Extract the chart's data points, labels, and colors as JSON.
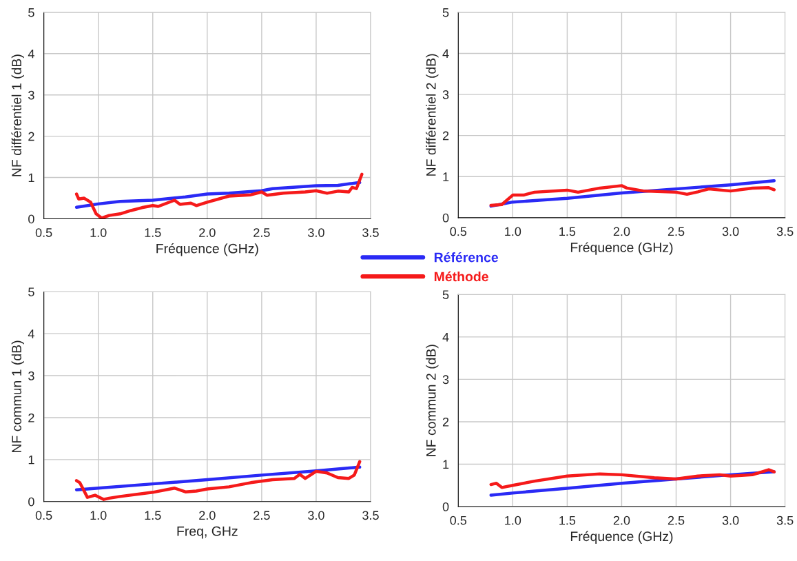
{
  "chart_data": [
    {
      "type": "line",
      "xlabel": "Fréquence (GHz)",
      "ylabel": "NF différentiel 1 (dB)",
      "xlim": [
        0.5,
        3.5
      ],
      "ylim": [
        0,
        5
      ],
      "xticks": [
        0.5,
        {
          "value": 1,
          "label": "1.0"
        },
        1.5,
        {
          "value": 2,
          "label": "2.0"
        },
        2.5,
        {
          "value": 3,
          "label": "3.0"
        },
        3.5
      ],
      "yticks": [
        0,
        1,
        2,
        3,
        4,
        5
      ],
      "grid": true,
      "legend": "bottom right",
      "line_style": "solid",
      "series": [
        {
          "name": "Référence",
          "color": "#2a2af5",
          "x": [
            0.8,
            1.0,
            1.2,
            1.5,
            1.8,
            2.0,
            2.2,
            2.5,
            2.6,
            3.0,
            3.2,
            3.4
          ],
          "values": [
            0.28,
            0.36,
            0.42,
            0.45,
            0.53,
            0.6,
            0.62,
            0.68,
            0.73,
            0.8,
            0.81,
            0.88
          ]
        },
        {
          "name": "Méthode",
          "color": "#f51a1a",
          "x": [
            0.8,
            0.82,
            0.87,
            0.93,
            0.98,
            1.03,
            1.1,
            1.2,
            1.3,
            1.4,
            1.5,
            1.55,
            1.7,
            1.75,
            1.85,
            1.9,
            2.0,
            2.2,
            2.4,
            2.5,
            2.55,
            2.7,
            2.9,
            3.0,
            3.1,
            3.2,
            3.3,
            3.33,
            3.37,
            3.42
          ],
          "values": [
            0.6,
            0.48,
            0.5,
            0.4,
            0.12,
            0.02,
            0.08,
            0.12,
            0.2,
            0.27,
            0.32,
            0.3,
            0.45,
            0.35,
            0.38,
            0.32,
            0.4,
            0.55,
            0.58,
            0.65,
            0.57,
            0.62,
            0.65,
            0.68,
            0.62,
            0.67,
            0.65,
            0.76,
            0.73,
            1.08
          ]
        }
      ]
    },
    {
      "type": "line",
      "xlabel": "Fréquence (GHz)",
      "ylabel": "NF différentiel 2 (dB)",
      "xlim": [
        0.5,
        3.5
      ],
      "ylim": [
        0,
        5
      ],
      "xticks": [
        0.5,
        {
          "value": 1,
          "label": "1.0"
        },
        1.5,
        {
          "value": 2,
          "label": "2.0"
        },
        2.5,
        {
          "value": 3,
          "label": "3.0"
        },
        3.5
      ],
      "yticks": [
        0,
        1,
        2,
        3,
        4,
        5
      ],
      "grid": true,
      "line_style": "solid",
      "series": [
        {
          "color": "#2a2af5",
          "x": [
            0.8,
            1.0,
            1.5,
            2.0,
            2.5,
            3.0,
            3.4
          ],
          "values": [
            0.28,
            0.38,
            0.47,
            0.6,
            0.7,
            0.8,
            0.9
          ]
        },
        {
          "color": "#f51a1a",
          "x": [
            0.8,
            0.9,
            1.0,
            1.1,
            1.2,
            1.5,
            1.6,
            1.8,
            2.0,
            2.05,
            2.2,
            2.5,
            2.6,
            2.7,
            2.8,
            3.0,
            3.2,
            3.35,
            3.4
          ],
          "values": [
            0.3,
            0.32,
            0.55,
            0.55,
            0.62,
            0.67,
            0.62,
            0.72,
            0.78,
            0.72,
            0.65,
            0.62,
            0.57,
            0.63,
            0.7,
            0.65,
            0.72,
            0.73,
            0.68
          ]
        }
      ]
    },
    {
      "type": "line",
      "xlabel": "Freq, GHz",
      "ylabel": "NF commun 1 (dB)",
      "xlim": [
        0.5,
        3.5
      ],
      "ylim": [
        0,
        5
      ],
      "xticks": [
        0.5,
        {
          "value": 1,
          "label": "1.0"
        },
        1.5,
        {
          "value": 2,
          "label": "2.0"
        },
        2.5,
        {
          "value": 3,
          "label": "3.0"
        },
        3.5
      ],
      "yticks": [
        0,
        1,
        2,
        3,
        4,
        5
      ],
      "grid": true,
      "line_style": "solid",
      "series": [
        {
          "color": "#2a2af5",
          "x": [
            0.8,
            1.0,
            1.5,
            2.0,
            2.5,
            3.0,
            3.4
          ],
          "values": [
            0.28,
            0.32,
            0.42,
            0.52,
            0.63,
            0.73,
            0.82
          ]
        },
        {
          "color": "#f51a1a",
          "x": [
            0.8,
            0.83,
            0.9,
            0.97,
            1.05,
            1.1,
            1.2,
            1.5,
            1.7,
            1.8,
            1.9,
            2.0,
            2.2,
            2.4,
            2.6,
            2.8,
            2.85,
            2.9,
            3.0,
            3.1,
            3.2,
            3.3,
            3.35,
            3.4
          ],
          "values": [
            0.5,
            0.45,
            0.1,
            0.15,
            0.05,
            0.08,
            0.12,
            0.22,
            0.32,
            0.23,
            0.25,
            0.3,
            0.35,
            0.45,
            0.52,
            0.55,
            0.65,
            0.55,
            0.72,
            0.68,
            0.57,
            0.55,
            0.63,
            0.95
          ]
        }
      ]
    },
    {
      "type": "line",
      "xlabel": "Fréquence (GHz)",
      "ylabel": "NF commun 2 (dB)",
      "xlim": [
        0.5,
        3.5
      ],
      "ylim": [
        0,
        5
      ],
      "xticks": [
        0.5,
        {
          "value": 1,
          "label": "1.0"
        },
        1.5,
        {
          "value": 2,
          "label": "2.0"
        },
        2.5,
        {
          "value": 3,
          "label": "3.0"
        },
        3.5
      ],
      "yticks": [
        0,
        1,
        2,
        3,
        4,
        5
      ],
      "grid": true,
      "line_style": "solid",
      "series": [
        {
          "color": "#2a2af5",
          "x": [
            0.8,
            1.0,
            1.5,
            2.0,
            2.5,
            3.0,
            3.4
          ],
          "values": [
            0.27,
            0.32,
            0.43,
            0.55,
            0.65,
            0.75,
            0.82
          ]
        },
        {
          "color": "#f51a1a",
          "x": [
            0.8,
            0.85,
            0.9,
            1.0,
            1.2,
            1.5,
            1.8,
            2.0,
            2.3,
            2.5,
            2.7,
            2.9,
            3.0,
            3.2,
            3.35,
            3.4
          ],
          "values": [
            0.52,
            0.55,
            0.45,
            0.5,
            0.6,
            0.72,
            0.77,
            0.75,
            0.68,
            0.65,
            0.72,
            0.75,
            0.72,
            0.75,
            0.87,
            0.82
          ]
        }
      ]
    }
  ]
}
